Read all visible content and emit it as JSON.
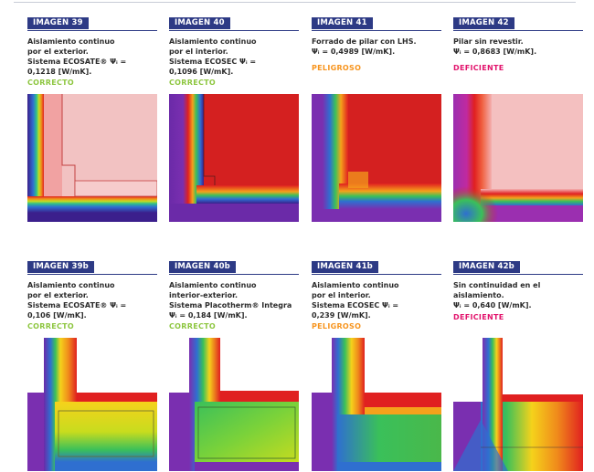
{
  "panels": [
    {
      "tag": "IMAGEN 39",
      "lines": [
        "Aislamiento continuo",
        "por el exterior.",
        "Sistema ECOSATE® Ψᵢ =",
        "0,1218 [W/mK]."
      ],
      "status": "CORRECTO",
      "status_class": "correcto"
    },
    {
      "tag": "IMAGEN 40",
      "lines": [
        "Aislamiento continuo",
        "por el interior.",
        "Sistema ECOSEC Ψᵢ =",
        "0,1096 [W/mK]."
      ],
      "status": "CORRECTO",
      "status_class": "correcto"
    },
    {
      "tag": "IMAGEN 41",
      "lines": [
        "Forrado de pilar con LHS.",
        "Ψᵢ = 0,4989 [W/mK]."
      ],
      "status": "PELIGROSO",
      "status_class": "peligroso"
    },
    {
      "tag": "IMAGEN 42",
      "lines": [
        "Pilar sin revestir.",
        "Ψᵢ = 0,8683 [W/mK]."
      ],
      "status": "DEFICIENTE",
      "status_class": "deficiente"
    },
    {
      "tag": "IMAGEN 39b",
      "lines": [
        "Aislamiento continuo",
        "por el exterior.",
        "Sistema ECOSATE® Ψᵢ =",
        "0,106 [W/mK]."
      ],
      "status": "CORRECTO",
      "status_class": "correcto"
    },
    {
      "tag": "IMAGEN 40b",
      "lines": [
        "Aislamiento continuo",
        "interior-exterior.",
        "Sistema Placotherm® Integra",
        "Ψᵢ = 0,184 [W/mK]."
      ],
      "status": "CORRECTO",
      "status_class": "correcto"
    },
    {
      "tag": "IMAGEN 41b",
      "lines": [
        "Aislamiento continuo",
        "por el interior.",
        "Sistema ECOSEC Ψᵢ =",
        "0,239 [W/mK]."
      ],
      "status": "PELIGROSO",
      "status_class": "peligroso"
    },
    {
      "tag": "IMAGEN 42b",
      "lines": [
        "Sin continuidad en el",
        "aislamiento.",
        "Ψᵢ = 0,640 [W/mK]."
      ],
      "status": "DEFICIENTE",
      "status_class": "deficiente"
    }
  ],
  "colors": {
    "tag_bg": "#2d3a85",
    "correcto": "#8dc63f",
    "peligroso": "#f7941d",
    "deficiente": "#e2136c"
  }
}
